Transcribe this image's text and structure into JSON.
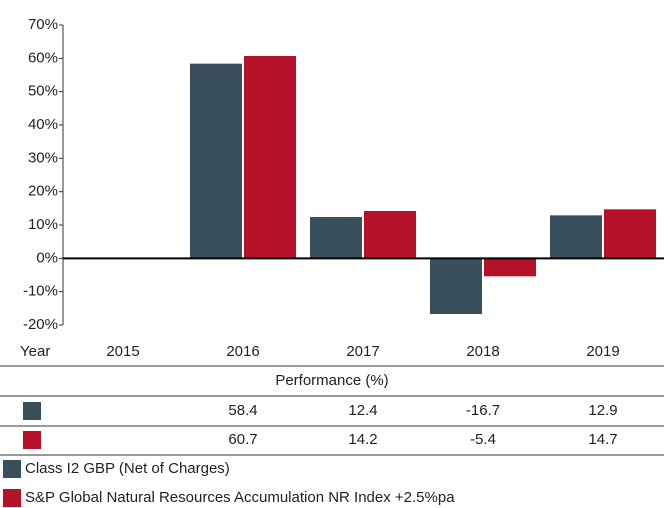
{
  "chart_data": {
    "type": "bar",
    "x_label": "Year",
    "categories": [
      "2015",
      "2016",
      "2017",
      "2018",
      "2019"
    ],
    "series": [
      {
        "name": "Class I2 GBP (Net of Charges)",
        "color": "#3a4f5c",
        "values": [
          null,
          58.4,
          12.4,
          -16.7,
          12.9
        ]
      },
      {
        "name": "S&P Global Natural Resources Accumulation NR Index +2.5%pa",
        "color": "#b5112b",
        "values": [
          null,
          60.7,
          14.2,
          -5.4,
          14.7
        ]
      }
    ],
    "ylim": [
      -20,
      70
    ],
    "yticks": [
      {
        "value": -20,
        "label": "-20%"
      },
      {
        "value": -10,
        "label": "-10%"
      },
      {
        "value": 0,
        "label": "0%"
      },
      {
        "value": 10,
        "label": "10%"
      },
      {
        "value": 20,
        "label": "20%"
      },
      {
        "value": 30,
        "label": "30%"
      },
      {
        "value": 40,
        "label": "40%"
      },
      {
        "value": 50,
        "label": "50%"
      },
      {
        "value": 60,
        "label": "60%"
      },
      {
        "value": 70,
        "label": "70%"
      }
    ],
    "table_title": "Performance (%)"
  }
}
